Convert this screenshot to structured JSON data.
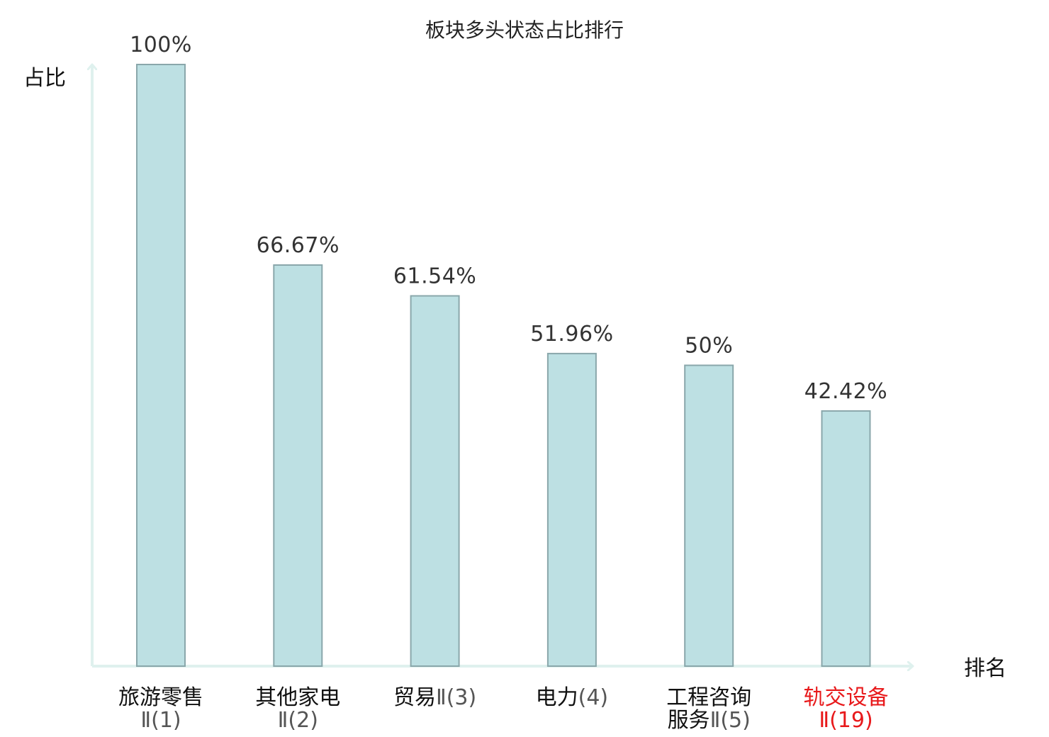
{
  "chart_data": {
    "type": "bar",
    "title": "板块多头状态占比排行",
    "ylabel": "占比",
    "xlabel": "排名",
    "ylim": [
      0,
      100
    ],
    "value_suffix": "%",
    "bar_fill": "#bde0e3",
    "bar_stroke": "#8aa7ab",
    "axis_color": "#dff1ee",
    "highlight_color": "#e8191b",
    "text_color": "#111111",
    "rank_color": "#555555",
    "categories": [
      {
        "name_lines": [
          "旅游零售"
        ],
        "rank": "Ⅱ(1)",
        "value": 100,
        "label": "100%",
        "highlight": false
      },
      {
        "name_lines": [
          "其他家电"
        ],
        "rank": "Ⅱ(2)",
        "value": 66.67,
        "label": "66.67%",
        "highlight": false
      },
      {
        "name_lines": [
          "贸易"
        ],
        "rank": "Ⅱ(3)",
        "value": 61.54,
        "label": "61.54%",
        "highlight": false
      },
      {
        "name_lines": [
          "电力"
        ],
        "rank": "(4)",
        "value": 51.96,
        "label": "51.96%",
        "highlight": false
      },
      {
        "name_lines": [
          "工程咨询",
          "服务"
        ],
        "rank": "Ⅱ(5)",
        "value": 50,
        "label": "50%",
        "highlight": false
      },
      {
        "name_lines": [
          "轨交设备"
        ],
        "rank": "Ⅱ(19)",
        "value": 42.42,
        "label": "42.42%",
        "highlight": true
      }
    ]
  }
}
